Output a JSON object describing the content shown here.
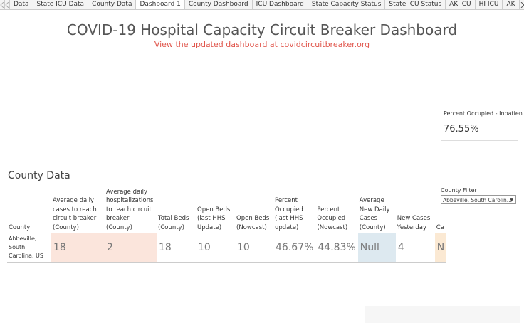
{
  "tabs": {
    "items": [
      "Data",
      "State ICU Data",
      "County Data",
      "Dashboard 1",
      "County Dashboard",
      "ICU Dashboard",
      "State Capacity Status",
      "State ICU Status",
      "AK ICU",
      "HI ICU",
      "AK"
    ],
    "active": 3
  },
  "header": {
    "title": "COVID-19 Hospital Capacity Circuit Breaker Dashboard",
    "subtitle": "View the updated dashboard at covidcircuitbreaker.org"
  },
  "kpi": {
    "label": "Percent Occupied - Inpatien",
    "value": "76.55%"
  },
  "table": {
    "title": "County Data",
    "columns": [
      "County",
      "Average daily cases to reach circuit breaker (County)",
      "Average daily hospitalizations to reach circuit breaker (County)",
      "Total Beds (County)",
      "Open Beds (last HHS Update)",
      "Open Beds (Nowcast)",
      "Percent Occupied (last HHS update)",
      "Percent Occupied (Nowcast)",
      "Average New Daily Cases (County)",
      "New Cases Yesterday",
      "Ca"
    ],
    "rows": [
      [
        "Abbeville, South Carolina, US",
        "18",
        "2",
        "18",
        "10",
        "10",
        "46.67%",
        "44.83%",
        "Null",
        "4",
        "N"
      ]
    ]
  },
  "filter": {
    "label": "County Filter",
    "value": "Abbeville, South Carolin..."
  }
}
